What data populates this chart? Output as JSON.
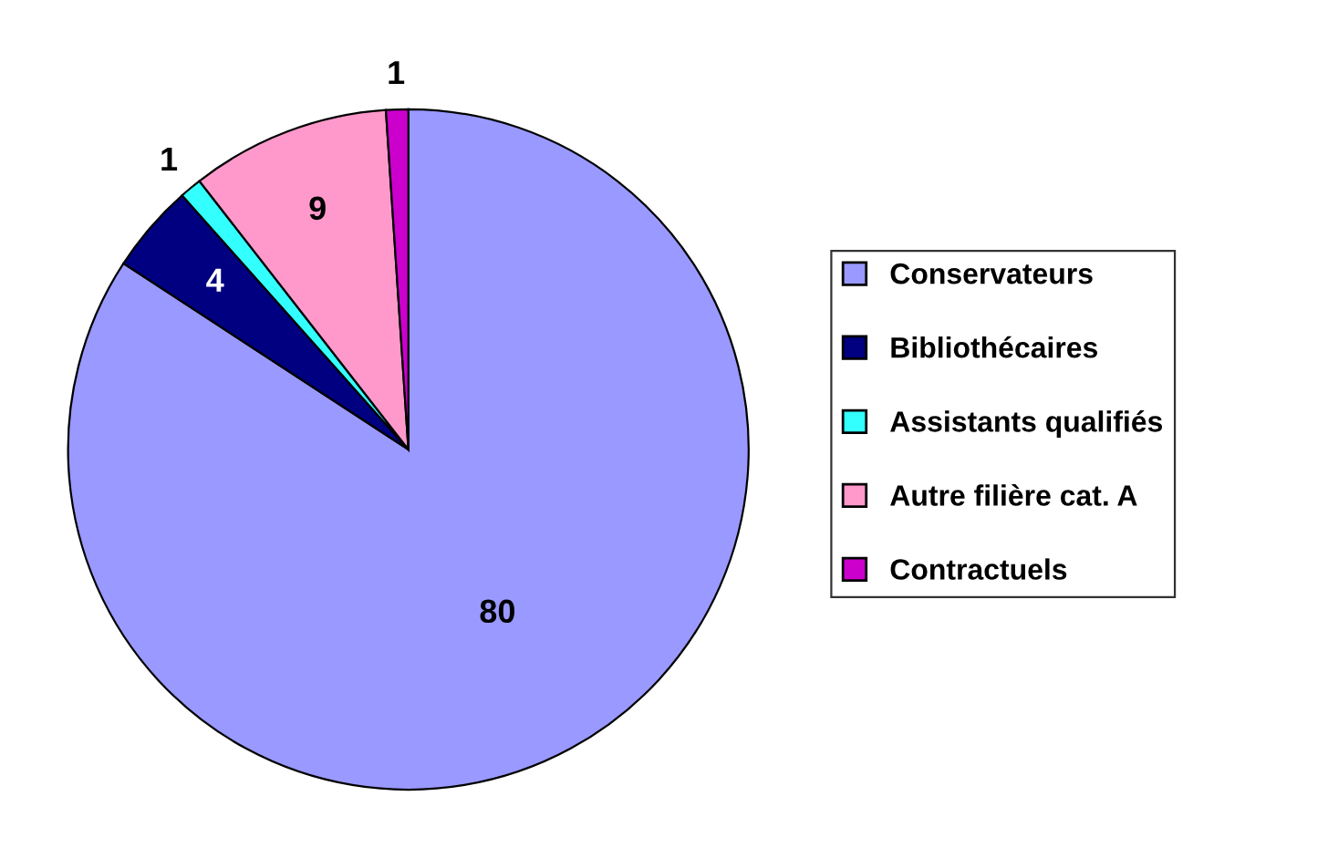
{
  "chart_data": {
    "type": "pie",
    "categories": [
      "Conservateurs",
      "Bibliothécaires",
      "Assistants qualifiés",
      "Autre filière cat. A",
      "Contractuels"
    ],
    "values": [
      80,
      4,
      1,
      9,
      1
    ],
    "colors": [
      "#9999ff",
      "#000080",
      "#33ffff",
      "#ff99cc",
      "#cc00cc"
    ],
    "data_labels": true,
    "legend": "right"
  }
}
